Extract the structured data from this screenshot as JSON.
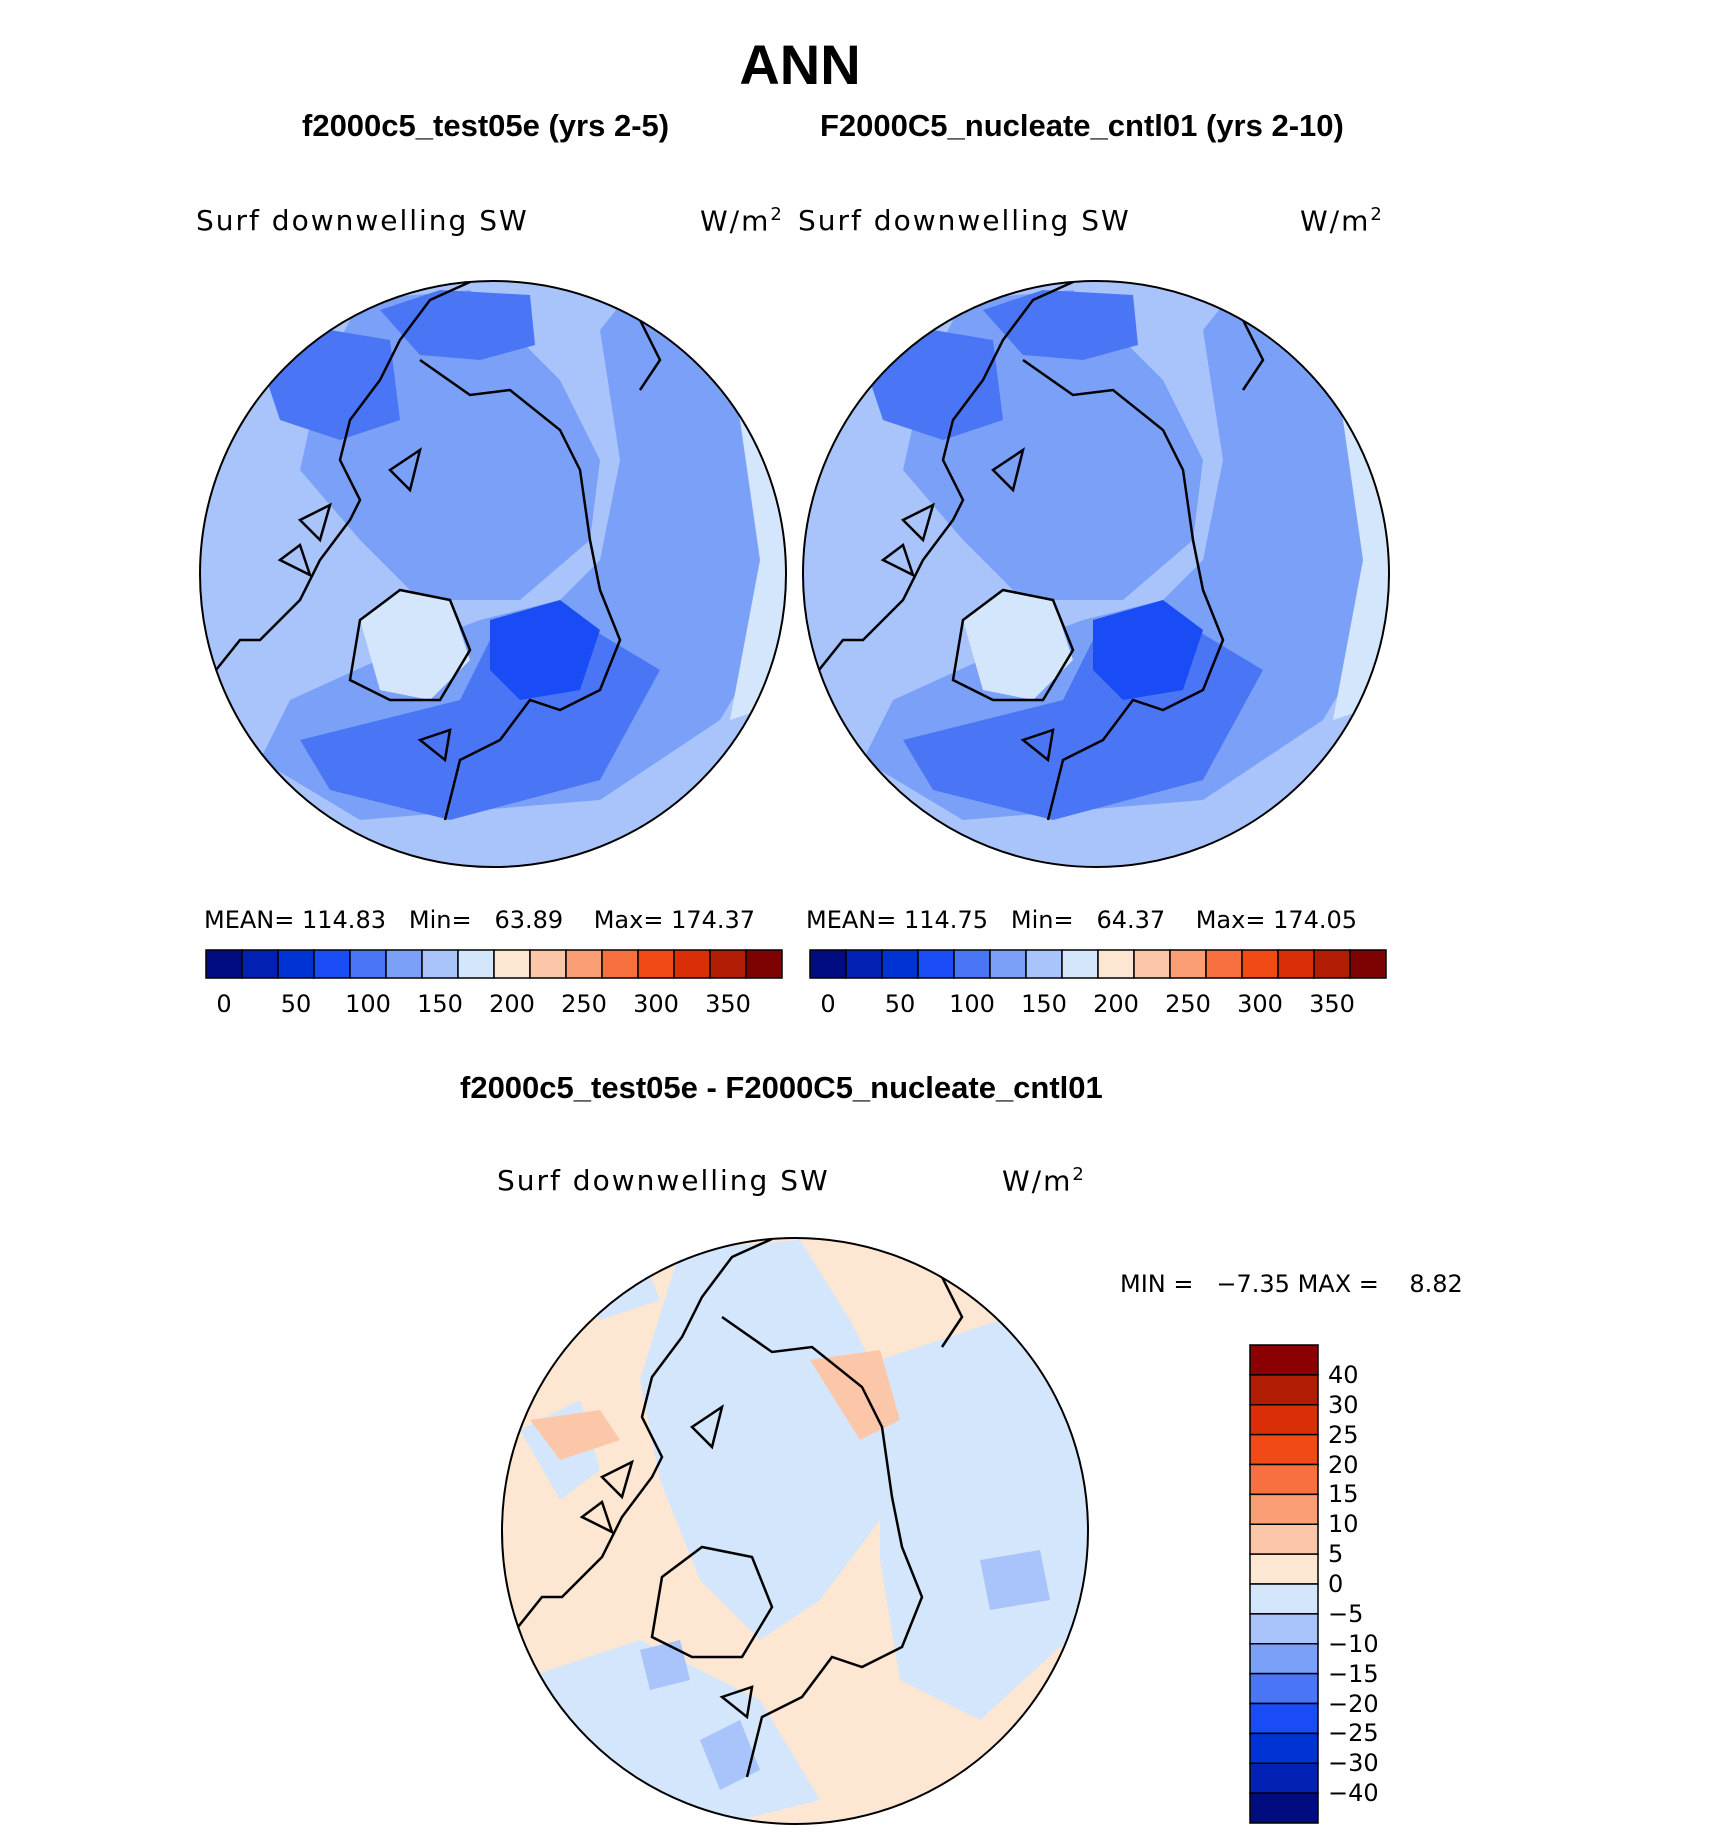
{
  "title": "ANN",
  "panels": [
    {
      "case_title": "f2000c5_test05e (yrs 2-5)",
      "variable": "Surf downwelling SW",
      "units_base": "W/m",
      "units_exp": "2",
      "mean_label": "MEAN=",
      "mean": "114.83",
      "min_label": "Min=",
      "min": "63.89",
      "max_label": "Max=",
      "max": "174.37"
    },
    {
      "case_title": "F2000C5_nucleate_cntl01 (yrs 2-10)",
      "variable": "Surf downwelling SW",
      "units_base": "W/m",
      "units_exp": "2",
      "mean_label": "MEAN=",
      "mean": "114.75",
      "min_label": "Min=",
      "min": "64.37",
      "max_label": "Max=",
      "max": "174.05"
    },
    {
      "case_title": "f2000c5_test05e - F2000C5_nucleate_cntl01",
      "variable": "Surf downwelling SW",
      "units_base": "W/m",
      "units_exp": "2",
      "min_label": "MIN =",
      "min": "−7.35",
      "max_label": "MAX =",
      "max": "8.82"
    }
  ],
  "chart_data": [
    {
      "type": "heatmap",
      "projection": "north-polar-stereographic",
      "colorbar": {
        "orientation": "horizontal",
        "levels": [
          25,
          50,
          75,
          100,
          125,
          150,
          175,
          200,
          225,
          250,
          275,
          300,
          325,
          350,
          375
        ],
        "tick_labels": [
          "0",
          "50",
          "100",
          "150",
          "200",
          "250",
          "300",
          "350"
        ],
        "colors": [
          "#000c80",
          "#0021b3",
          "#0033d4",
          "#1a4cf5",
          "#4a76f5",
          "#7aa1f7",
          "#a9c4fa",
          "#d4e6fc",
          "#fde6d2",
          "#fcc6a8",
          "#fa9e76",
          "#f77040",
          "#f24a17",
          "#d92e08",
          "#b01c04",
          "#7d0303"
        ]
      },
      "field_summary": {
        "mean": 114.83,
        "min": 63.89,
        "max": 174.37
      }
    },
    {
      "type": "heatmap",
      "projection": "north-polar-stereographic",
      "colorbar": {
        "orientation": "horizontal",
        "levels": [
          25,
          50,
          75,
          100,
          125,
          150,
          175,
          200,
          225,
          250,
          275,
          300,
          325,
          350,
          375
        ],
        "tick_labels": [
          "0",
          "50",
          "100",
          "150",
          "200",
          "250",
          "300",
          "350"
        ],
        "colors": [
          "#000c80",
          "#0021b3",
          "#0033d4",
          "#1a4cf5",
          "#4a76f5",
          "#7aa1f7",
          "#a9c4fa",
          "#d4e6fc",
          "#fde6d2",
          "#fcc6a8",
          "#fa9e76",
          "#f77040",
          "#f24a17",
          "#d92e08",
          "#b01c04",
          "#7d0303"
        ]
      },
      "field_summary": {
        "mean": 114.75,
        "min": 64.37,
        "max": 174.05
      }
    },
    {
      "type": "heatmap",
      "projection": "north-polar-stereographic",
      "colorbar": {
        "orientation": "vertical",
        "levels": [
          40,
          30,
          25,
          20,
          15,
          10,
          5,
          0,
          -5,
          -10,
          -15,
          -20,
          -25,
          -30,
          -40
        ],
        "tick_labels": [
          "40",
          "30",
          "25",
          "20",
          "15",
          "10",
          "5",
          "0",
          "−5",
          "−10",
          "−15",
          "−20",
          "−25",
          "−30",
          "−40"
        ],
        "colors": [
          "#8b0000",
          "#b01c04",
          "#d92e08",
          "#f24a17",
          "#f77040",
          "#fa9e76",
          "#fcc6a8",
          "#fde6d2",
          "#d4e6fc",
          "#a9c4fa",
          "#7aa1f7",
          "#4a76f5",
          "#1a4cf5",
          "#0033d4",
          "#0021b3",
          "#000c80"
        ]
      },
      "field_summary": {
        "min": -7.35,
        "max": 8.82
      }
    }
  ]
}
